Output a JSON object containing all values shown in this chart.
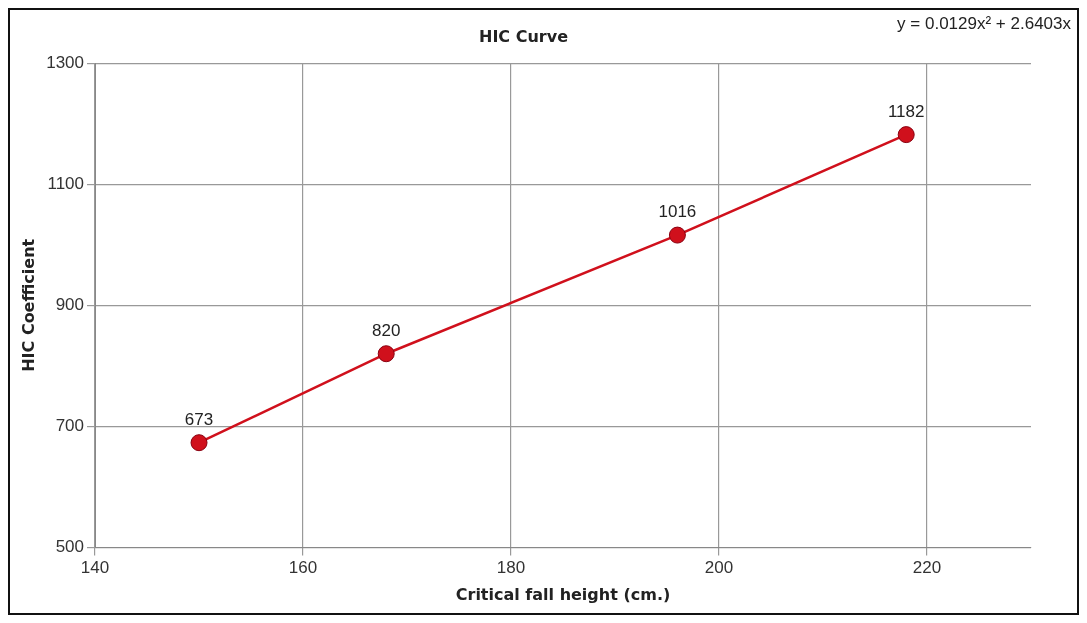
{
  "chart_data": {
    "type": "line",
    "title": "HIC Curve",
    "xlabel": "Critical fall height (cm.)",
    "ylabel": "HIC Coefficient",
    "x": [
      150,
      168,
      196,
      218
    ],
    "series": [
      {
        "color": "#d0101c",
        "values": [
          673,
          820,
          1016,
          1182
        ]
      }
    ],
    "xlim": [
      140,
      230
    ],
    "xticks": [
      140,
      160,
      180,
      200,
      220
    ],
    "ylim": [
      500,
      1300
    ],
    "yticks": [
      500,
      700,
      900,
      1100,
      1300
    ],
    "grid": true,
    "marker": "circle",
    "data_labels": true,
    "annotations": [
      "y = 0.0129x² + 2.6403x"
    ]
  }
}
